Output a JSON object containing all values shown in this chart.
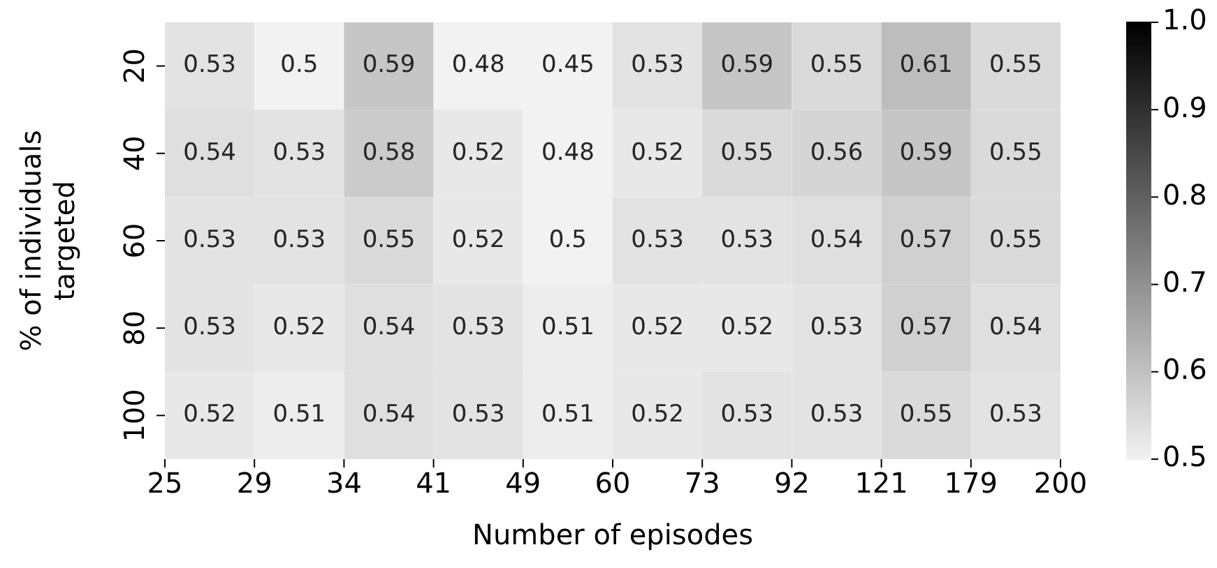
{
  "chart_data": {
    "type": "heatmap",
    "xlabel": "Number of episodes",
    "ylabel": "% of individuals targeted",
    "categories": [
      null,
      null,
      null,
      null,
      null,
      null,
      null,
      null,
      null,
      null
    ],
    "annotations": [
      "25",
      "29",
      "34",
      "41",
      "49",
      "60",
      "73",
      "92",
      "121",
      "179",
      "200"
    ],
    "y_categories": [
      "20",
      "40",
      "60",
      "80",
      "100"
    ],
    "cells": [
      [
        0.53,
        0.5,
        0.59,
        0.48,
        0.45,
        0.53,
        0.59,
        0.55,
        0.61,
        0.55
      ],
      [
        0.54,
        0.53,
        0.58,
        0.52,
        0.48,
        0.52,
        0.55,
        0.56,
        0.59,
        0.55
      ],
      [
        0.53,
        0.53,
        0.55,
        0.52,
        0.5,
        0.53,
        0.53,
        0.54,
        0.57,
        0.55
      ],
      [
        0.53,
        0.52,
        0.54,
        0.53,
        0.51,
        0.52,
        0.52,
        0.53,
        0.57,
        0.54
      ],
      [
        0.52,
        0.51,
        0.54,
        0.53,
        0.51,
        0.52,
        0.53,
        0.53,
        0.55,
        0.53
      ]
    ],
    "data_labels": true,
    "clim": [
      0.5,
      1.0
    ],
    "cticks": [
      0.5,
      0.6,
      0.7,
      0.8,
      0.9,
      {
        "value": 1,
        "label": "1.0"
      }
    ]
  }
}
